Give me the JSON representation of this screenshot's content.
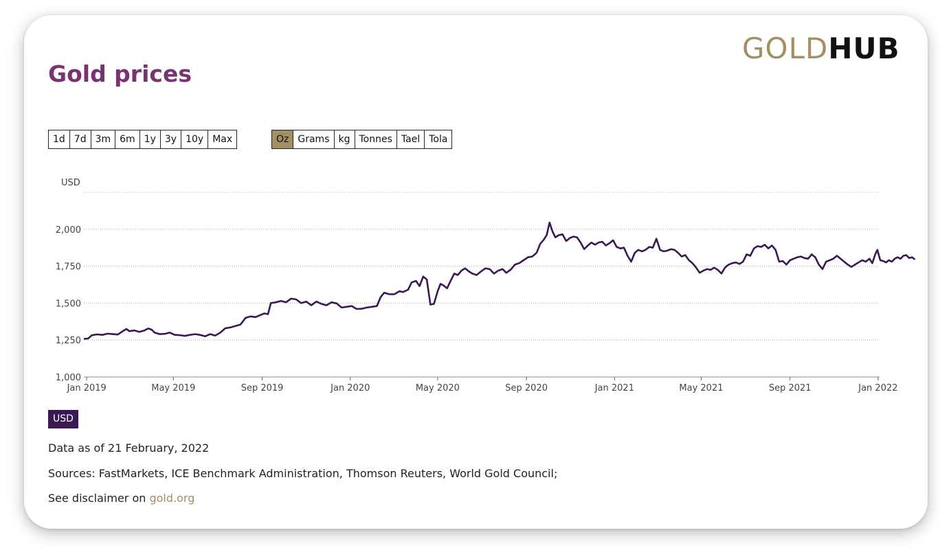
{
  "header": {
    "logo_gold": "GOLD",
    "logo_hub": "HUB",
    "title": "Gold prices"
  },
  "range_buttons": [
    "1d",
    "7d",
    "3m",
    "6m",
    "1y",
    "3y",
    "10y",
    "Max"
  ],
  "unit_buttons": [
    "Oz",
    "Grams",
    "kg",
    "Tonnes",
    "Tael",
    "Tola"
  ],
  "active_unit": "Oz",
  "currency_badge": "USD",
  "footer": {
    "data_as_of": "Data as of 21 February, 2022",
    "sources": "Sources: FastMarkets, ICE Benchmark Administration, Thomson Reuters, World Gold Council;",
    "disclaimer_prefix": "See disclaimer on ",
    "disclaimer_link": "gold.org"
  },
  "colors": {
    "title": "#7a3371",
    "accent_gold": "#a38f64",
    "line": "#3a1853"
  },
  "chart_data": {
    "type": "line",
    "title": "",
    "xlabel": "",
    "ylabel": "USD",
    "ylim": [
      1000,
      2250
    ],
    "yticks": [
      1000,
      1250,
      1500,
      1750,
      2000
    ],
    "ytick_labels": [
      "1,000",
      "1,250",
      "1,500",
      "1,750",
      "2,000"
    ],
    "xticks": [
      {
        "date": "2019-01-01",
        "label": "Jan 2019"
      },
      {
        "date": "2019-05-01",
        "label": "May 2019"
      },
      {
        "date": "2019-09-01",
        "label": "Sep 2019"
      },
      {
        "date": "2020-01-01",
        "label": "Jan 2020"
      },
      {
        "date": "2020-05-01",
        "label": "May 2020"
      },
      {
        "date": "2020-09-01",
        "label": "Sep 2020"
      },
      {
        "date": "2021-01-01",
        "label": "Jan 2021"
      },
      {
        "date": "2021-05-01",
        "label": "May 2021"
      },
      {
        "date": "2021-09-01",
        "label": "Sep 2021"
      },
      {
        "date": "2022-01-01",
        "label": "Jan 2022"
      }
    ],
    "xlim": [
      "2018-12-28",
      "2022-01-03"
    ],
    "grid": true,
    "series": [
      {
        "name": "",
        "points": [
          [
            "2018-12-28",
            1258
          ],
          [
            "2019-01-03",
            1260
          ],
          [
            "2019-01-08",
            1282
          ],
          [
            "2019-01-15",
            1288
          ],
          [
            "2019-01-23",
            1285
          ],
          [
            "2019-01-30",
            1293
          ],
          [
            "2019-02-06",
            1290
          ],
          [
            "2019-02-13",
            1287
          ],
          [
            "2019-02-20",
            1310
          ],
          [
            "2019-02-25",
            1325
          ],
          [
            "2019-03-01",
            1310
          ],
          [
            "2019-03-08",
            1315
          ],
          [
            "2019-03-15",
            1305
          ],
          [
            "2019-03-22",
            1315
          ],
          [
            "2019-03-27",
            1328
          ],
          [
            "2019-04-01",
            1320
          ],
          [
            "2019-04-05",
            1300
          ],
          [
            "2019-04-12",
            1290
          ],
          [
            "2019-04-19",
            1292
          ],
          [
            "2019-04-26",
            1300
          ],
          [
            "2019-05-03",
            1285
          ],
          [
            "2019-05-10",
            1283
          ],
          [
            "2019-05-17",
            1278
          ],
          [
            "2019-05-24",
            1285
          ],
          [
            "2019-05-31",
            1290
          ],
          [
            "2019-06-07",
            1285
          ],
          [
            "2019-06-14",
            1275
          ],
          [
            "2019-06-21",
            1290
          ],
          [
            "2019-06-28",
            1280
          ],
          [
            "2019-07-05",
            1300
          ],
          [
            "2019-07-12",
            1330
          ],
          [
            "2019-07-19",
            1335
          ],
          [
            "2019-07-26",
            1345
          ],
          [
            "2019-08-02",
            1355
          ],
          [
            "2019-08-09",
            1400
          ],
          [
            "2019-08-16",
            1410
          ],
          [
            "2019-08-23",
            1405
          ],
          [
            "2019-08-30",
            1420
          ],
          [
            "2019-09-04",
            1430
          ],
          [
            "2019-09-09",
            1425
          ],
          [
            "2019-09-13",
            1500
          ],
          [
            "2019-09-20",
            1505
          ],
          [
            "2019-09-27",
            1515
          ],
          [
            "2019-10-04",
            1505
          ],
          [
            "2019-10-11",
            1530
          ],
          [
            "2019-10-18",
            1525
          ],
          [
            "2019-10-25",
            1500
          ],
          [
            "2019-11-01",
            1510
          ],
          [
            "2019-11-08",
            1485
          ],
          [
            "2019-11-15",
            1510
          ],
          [
            "2019-11-22",
            1495
          ],
          [
            "2019-11-29",
            1485
          ],
          [
            "2019-12-06",
            1505
          ],
          [
            "2019-12-13",
            1498
          ],
          [
            "2019-12-20",
            1470
          ],
          [
            "2019-12-27",
            1475
          ],
          [
            "2020-01-03",
            1480
          ],
          [
            "2020-01-10",
            1460
          ],
          [
            "2020-01-17",
            1462
          ],
          [
            "2020-01-24",
            1470
          ],
          [
            "2020-01-31",
            1475
          ],
          [
            "2020-02-07",
            1480
          ],
          [
            "2020-02-12",
            1540
          ],
          [
            "2020-02-17",
            1570
          ],
          [
            "2020-02-24",
            1560
          ],
          [
            "2020-03-02",
            1560
          ],
          [
            "2020-03-09",
            1580
          ],
          [
            "2020-03-14",
            1575
          ],
          [
            "2020-03-21",
            1590
          ],
          [
            "2020-03-26",
            1640
          ],
          [
            "2020-04-01",
            1650
          ],
          [
            "2020-04-06",
            1615
          ],
          [
            "2020-04-11",
            1680
          ],
          [
            "2020-04-16",
            1660
          ],
          [
            "2020-04-21",
            1490
          ],
          [
            "2020-04-26",
            1495
          ],
          [
            "2020-05-01",
            1580
          ],
          [
            "2020-05-05",
            1630
          ],
          [
            "2020-05-09",
            1620
          ],
          [
            "2020-05-14",
            1600
          ],
          [
            "2020-05-19",
            1650
          ],
          [
            "2020-05-24",
            1700
          ],
          [
            "2020-05-29",
            1690
          ],
          [
            "2020-06-03",
            1720
          ],
          [
            "2020-06-08",
            1735
          ],
          [
            "2020-06-13",
            1715
          ],
          [
            "2020-06-18",
            1700
          ],
          [
            "2020-06-24",
            1690
          ],
          [
            "2020-06-29",
            1710
          ],
          [
            "2020-07-06",
            1735
          ],
          [
            "2020-07-12",
            1730
          ],
          [
            "2020-07-18",
            1700
          ],
          [
            "2020-07-24",
            1720
          ],
          [
            "2020-07-30",
            1730
          ],
          [
            "2020-08-04",
            1705
          ],
          [
            "2020-08-10",
            1725
          ],
          [
            "2020-08-16",
            1760
          ],
          [
            "2020-08-22",
            1770
          ],
          [
            "2020-08-28",
            1790
          ],
          [
            "2020-09-03",
            1810
          ],
          [
            "2020-09-09",
            1815
          ],
          [
            "2020-09-15",
            1840
          ],
          [
            "2020-09-20",
            1900
          ],
          [
            "2020-09-25",
            1930
          ],
          [
            "2020-09-29",
            1960
          ],
          [
            "2020-10-03",
            2045
          ],
          [
            "2020-10-07",
            1985
          ],
          [
            "2020-10-11",
            1945
          ],
          [
            "2020-10-16",
            1960
          ],
          [
            "2020-10-21",
            1965
          ],
          [
            "2020-10-26",
            1920
          ],
          [
            "2020-10-31",
            1940
          ],
          [
            "2020-11-05",
            1950
          ],
          [
            "2020-11-10",
            1945
          ],
          [
            "2020-11-15",
            1910
          ],
          [
            "2020-11-20",
            1865
          ],
          [
            "2020-11-25",
            1890
          ],
          [
            "2020-11-30",
            1910
          ],
          [
            "2020-12-05",
            1895
          ],
          [
            "2020-12-10",
            1910
          ],
          [
            "2020-12-15",
            1915
          ],
          [
            "2020-12-20",
            1890
          ],
          [
            "2020-12-25",
            1905
          ],
          [
            "2020-12-30",
            1925
          ],
          [
            "2021-01-04",
            1880
          ],
          [
            "2021-01-09",
            1870
          ],
          [
            "2021-01-14",
            1875
          ],
          [
            "2021-01-19",
            1820
          ],
          [
            "2021-01-24",
            1780
          ],
          [
            "2021-01-29",
            1840
          ],
          [
            "2021-02-03",
            1860
          ],
          [
            "2021-02-08",
            1850
          ],
          [
            "2021-02-13",
            1860
          ],
          [
            "2021-02-18",
            1880
          ],
          [
            "2021-02-23",
            1875
          ],
          [
            "2021-02-28",
            1935
          ],
          [
            "2021-03-05",
            1860
          ],
          [
            "2021-03-10",
            1850
          ],
          [
            "2021-03-15",
            1855
          ],
          [
            "2021-03-20",
            1865
          ],
          [
            "2021-03-25",
            1860
          ],
          [
            "2021-03-30",
            1840
          ],
          [
            "2021-04-04",
            1815
          ],
          [
            "2021-04-09",
            1825
          ],
          [
            "2021-04-14",
            1790
          ],
          [
            "2021-04-19",
            1770
          ],
          [
            "2021-04-24",
            1740
          ],
          [
            "2021-04-29",
            1705
          ],
          [
            "2021-05-04",
            1720
          ],
          [
            "2021-05-09",
            1730
          ],
          [
            "2021-05-14",
            1725
          ],
          [
            "2021-05-19",
            1740
          ],
          [
            "2021-05-24",
            1725
          ],
          [
            "2021-05-29",
            1700
          ],
          [
            "2021-06-03",
            1740
          ],
          [
            "2021-06-08",
            1760
          ],
          [
            "2021-06-13",
            1770
          ],
          [
            "2021-06-18",
            1775
          ],
          [
            "2021-06-23",
            1765
          ],
          [
            "2021-06-28",
            1780
          ],
          [
            "2021-07-03",
            1830
          ],
          [
            "2021-07-08",
            1820
          ],
          [
            "2021-07-13",
            1870
          ],
          [
            "2021-07-18",
            1885
          ],
          [
            "2021-07-23",
            1880
          ],
          [
            "2021-07-28",
            1895
          ],
          [
            "2021-08-02",
            1870
          ],
          [
            "2021-08-07",
            1890
          ],
          [
            "2021-08-12",
            1860
          ],
          [
            "2021-08-17",
            1780
          ],
          [
            "2021-08-22",
            1785
          ],
          [
            "2021-08-27",
            1760
          ],
          [
            "2021-09-01",
            1790
          ],
          [
            "2021-09-06",
            1800
          ],
          [
            "2021-09-11",
            1810
          ],
          [
            "2021-09-16",
            1815
          ],
          [
            "2021-09-21",
            1805
          ],
          [
            "2021-09-26",
            1800
          ],
          [
            "2021-10-01",
            1830
          ],
          [
            "2021-10-06",
            1810
          ],
          [
            "2021-10-11",
            1760
          ],
          [
            "2021-10-16",
            1730
          ],
          [
            "2021-10-21",
            1780
          ],
          [
            "2021-10-26",
            1790
          ],
          [
            "2021-10-31",
            1800
          ],
          [
            "2021-11-05",
            1820
          ],
          [
            "2021-11-10",
            1800
          ],
          [
            "2021-11-15",
            1780
          ],
          [
            "2021-11-20",
            1760
          ],
          [
            "2021-11-25",
            1745
          ],
          [
            "2021-11-30",
            1760
          ],
          [
            "2021-12-05",
            1775
          ],
          [
            "2021-12-10",
            1790
          ],
          [
            "2021-12-15",
            1780
          ],
          [
            "2021-12-20",
            1800
          ],
          [
            "2021-12-24",
            1770
          ],
          [
            "2021-12-28",
            1830
          ],
          [
            "2021-12-31",
            1860
          ],
          [
            "2022-01-04",
            1790
          ],
          [
            "2022-01-08",
            1785
          ],
          [
            "2022-01-12",
            1775
          ],
          [
            "2022-01-16",
            1790
          ],
          [
            "2022-01-20",
            1780
          ],
          [
            "2022-01-24",
            1800
          ],
          [
            "2022-01-28",
            1810
          ],
          [
            "2022-02-01",
            1800
          ],
          [
            "2022-02-05",
            1820
          ],
          [
            "2022-02-09",
            1825
          ],
          [
            "2022-02-13",
            1805
          ],
          [
            "2022-02-17",
            1810
          ],
          [
            "2022-02-21",
            1795
          ]
        ]
      }
    ]
  }
}
